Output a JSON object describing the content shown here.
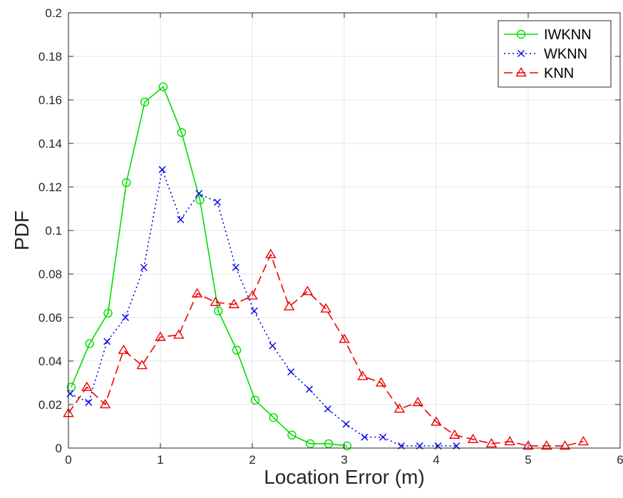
{
  "chart_data": {
    "type": "line",
    "title": "",
    "xlabel": "Location Error (m)",
    "ylabel": "PDF",
    "xlim": [
      0,
      6
    ],
    "ylim": [
      0,
      0.2
    ],
    "xticks": [
      "0",
      "1",
      "2",
      "3",
      "4",
      "5",
      "6"
    ],
    "yticks": [
      "0",
      "0.02",
      "0.04",
      "0.06",
      "0.08",
      "0.1",
      "0.12",
      "0.14",
      "0.16",
      "0.18",
      "0.2"
    ],
    "grid": true,
    "legend_position": "top-right",
    "series": [
      {
        "name": "IWKNN",
        "color": "#00dd00",
        "line_style": "solid",
        "marker": "circle",
        "x": [
          0.03,
          0.23,
          0.43,
          0.63,
          0.83,
          1.03,
          1.23,
          1.43,
          1.63,
          1.83,
          2.03,
          2.23,
          2.43,
          2.63,
          2.83,
          3.03
        ],
        "y": [
          0.028,
          0.048,
          0.062,
          0.122,
          0.159,
          0.166,
          0.145,
          0.114,
          0.063,
          0.045,
          0.022,
          0.014,
          0.006,
          0.002,
          0.002,
          0.001
        ]
      },
      {
        "name": "WKNN",
        "color": "#0000ee",
        "line_style": "dotted",
        "marker": "x",
        "x": [
          0.02,
          0.22,
          0.42,
          0.62,
          0.82,
          1.02,
          1.22,
          1.42,
          1.62,
          1.82,
          2.02,
          2.22,
          2.42,
          2.62,
          2.82,
          3.02,
          3.22,
          3.42,
          3.62,
          3.82,
          4.02,
          4.22
        ],
        "y": [
          0.025,
          0.021,
          0.049,
          0.06,
          0.083,
          0.128,
          0.105,
          0.117,
          0.113,
          0.083,
          0.063,
          0.047,
          0.035,
          0.027,
          0.018,
          0.011,
          0.005,
          0.005,
          0.001,
          0.001,
          0.001,
          0.001
        ]
      },
      {
        "name": "KNN",
        "color": "#ee0000",
        "line_style": "dashed",
        "marker": "triangle",
        "x": [
          0.0,
          0.2,
          0.4,
          0.6,
          0.8,
          1.0,
          1.2,
          1.4,
          1.6,
          1.8,
          2.0,
          2.2,
          2.4,
          2.6,
          2.8,
          3.0,
          3.2,
          3.4,
          3.6,
          3.8,
          4.0,
          4.2,
          4.4,
          4.6,
          4.8,
          5.0,
          5.2,
          5.4,
          5.6
        ],
        "y": [
          0.016,
          0.028,
          0.02,
          0.045,
          0.038,
          0.051,
          0.052,
          0.071,
          0.067,
          0.066,
          0.07,
          0.089,
          0.065,
          0.072,
          0.064,
          0.05,
          0.033,
          0.03,
          0.018,
          0.021,
          0.012,
          0.006,
          0.004,
          0.002,
          0.003,
          0.001,
          0.001,
          0.001,
          0.003
        ]
      }
    ]
  }
}
